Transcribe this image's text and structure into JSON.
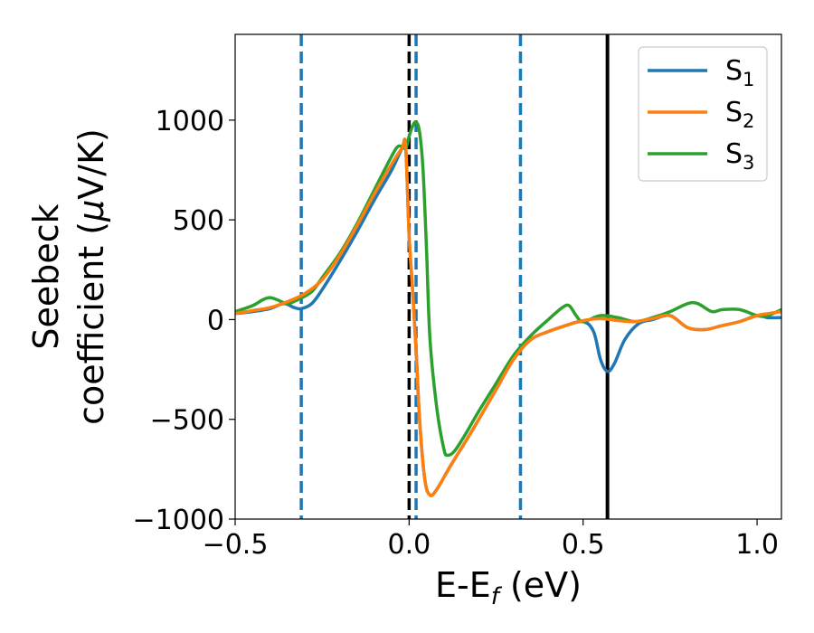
{
  "chart_data": {
    "type": "line",
    "xlabel": "E-E",
    "xlabel_sub": "f",
    "xlabel_unit": " (eV)",
    "ylabel_line1": "Seebeck",
    "ylabel_line2_prefix": "coefficient  (",
    "ylabel_mu": "μ",
    "ylabel_line2_suffix": "V/K)",
    "xlim": [
      -0.5,
      1.07
    ],
    "ylim": [
      -1000,
      1430
    ],
    "xticks": [
      -0.5,
      0.0,
      0.5,
      1.0
    ],
    "xtick_labels": [
      "−0.5",
      "0.0",
      "0.5",
      "1.0"
    ],
    "yticks": [
      -1000,
      -500,
      0,
      500,
      1000
    ],
    "ytick_labels": [
      "−1000",
      "−500",
      "0",
      "500",
      "1000"
    ],
    "grid": false,
    "legend_position": "top-right",
    "series": [
      {
        "name": "S",
        "sub": "1",
        "color": "#1f77b4",
        "points": [
          [
            -0.5,
            30
          ],
          [
            -0.45,
            40
          ],
          [
            -0.4,
            55
          ],
          [
            -0.36,
            80
          ],
          [
            -0.33,
            60
          ],
          [
            -0.31,
            55
          ],
          [
            -0.28,
            80
          ],
          [
            -0.25,
            150
          ],
          [
            -0.2,
            290
          ],
          [
            -0.15,
            440
          ],
          [
            -0.1,
            600
          ],
          [
            -0.05,
            750
          ],
          [
            -0.02,
            860
          ],
          [
            -0.01,
            870
          ],
          [
            0.0,
            420
          ],
          [
            0.01,
            150
          ],
          [
            0.02,
            -150
          ],
          [
            0.03,
            -500
          ],
          [
            0.045,
            -800
          ],
          [
            0.06,
            -880
          ],
          [
            0.08,
            -850
          ],
          [
            0.12,
            -730
          ],
          [
            0.18,
            -560
          ],
          [
            0.25,
            -350
          ],
          [
            0.3,
            -200
          ],
          [
            0.35,
            -100
          ],
          [
            0.4,
            -60
          ],
          [
            0.45,
            -30
          ],
          [
            0.5,
            -10
          ],
          [
            0.53,
            -60
          ],
          [
            0.55,
            -200
          ],
          [
            0.57,
            -260
          ],
          [
            0.59,
            -220
          ],
          [
            0.62,
            -100
          ],
          [
            0.66,
            -20
          ],
          [
            0.7,
            0
          ],
          [
            0.75,
            20
          ],
          [
            0.8,
            -40
          ],
          [
            0.85,
            -50
          ],
          [
            0.9,
            -30
          ],
          [
            0.95,
            -10
          ],
          [
            1.0,
            20
          ],
          [
            1.03,
            10
          ],
          [
            1.07,
            10
          ]
        ]
      },
      {
        "name": "S",
        "sub": "2",
        "color": "#ff7f0e",
        "points": [
          [
            -0.5,
            30
          ],
          [
            -0.45,
            45
          ],
          [
            -0.4,
            60
          ],
          [
            -0.35,
            90
          ],
          [
            -0.3,
            130
          ],
          [
            -0.25,
            200
          ],
          [
            -0.2,
            320
          ],
          [
            -0.15,
            470
          ],
          [
            -0.1,
            630
          ],
          [
            -0.05,
            780
          ],
          [
            -0.02,
            860
          ],
          [
            -0.01,
            870
          ],
          [
            0.0,
            420
          ],
          [
            0.01,
            150
          ],
          [
            0.02,
            -150
          ],
          [
            0.03,
            -500
          ],
          [
            0.045,
            -800
          ],
          [
            0.06,
            -880
          ],
          [
            0.08,
            -850
          ],
          [
            0.12,
            -730
          ],
          [
            0.18,
            -560
          ],
          [
            0.25,
            -350
          ],
          [
            0.3,
            -200
          ],
          [
            0.35,
            -100
          ],
          [
            0.4,
            -60
          ],
          [
            0.45,
            -30
          ],
          [
            0.5,
            -5
          ],
          [
            0.55,
            5
          ],
          [
            0.6,
            -5
          ],
          [
            0.65,
            -10
          ],
          [
            0.7,
            5
          ],
          [
            0.75,
            20
          ],
          [
            0.8,
            -40
          ],
          [
            0.85,
            -50
          ],
          [
            0.9,
            -30
          ],
          [
            0.95,
            -10
          ],
          [
            1.0,
            20
          ],
          [
            1.03,
            30
          ],
          [
            1.07,
            40
          ]
        ]
      },
      {
        "name": "S",
        "sub": "3",
        "color": "#2ca02c",
        "points": [
          [
            -0.5,
            40
          ],
          [
            -0.45,
            70
          ],
          [
            -0.42,
            100
          ],
          [
            -0.4,
            110
          ],
          [
            -0.38,
            100
          ],
          [
            -0.35,
            80
          ],
          [
            -0.32,
            100
          ],
          [
            -0.28,
            140
          ],
          [
            -0.25,
            210
          ],
          [
            -0.2,
            330
          ],
          [
            -0.15,
            480
          ],
          [
            -0.1,
            650
          ],
          [
            -0.05,
            820
          ],
          [
            -0.03,
            870
          ],
          [
            -0.01,
            860
          ],
          [
            0.0,
            920
          ],
          [
            0.01,
            970
          ],
          [
            0.02,
            990
          ],
          [
            0.03,
            940
          ],
          [
            0.04,
            750
          ],
          [
            0.05,
            350
          ],
          [
            0.06,
            -100
          ],
          [
            0.08,
            -450
          ],
          [
            0.1,
            -650
          ],
          [
            0.11,
            -680
          ],
          [
            0.13,
            -660
          ],
          [
            0.16,
            -580
          ],
          [
            0.2,
            -460
          ],
          [
            0.25,
            -320
          ],
          [
            0.3,
            -180
          ],
          [
            0.35,
            -80
          ],
          [
            0.4,
            0
          ],
          [
            0.44,
            60
          ],
          [
            0.46,
            70
          ],
          [
            0.48,
            20
          ],
          [
            0.5,
            -10
          ],
          [
            0.55,
            20
          ],
          [
            0.6,
            10
          ],
          [
            0.65,
            -10
          ],
          [
            0.7,
            10
          ],
          [
            0.75,
            40
          ],
          [
            0.8,
            80
          ],
          [
            0.83,
            80
          ],
          [
            0.87,
            40
          ],
          [
            0.9,
            50
          ],
          [
            0.95,
            50
          ],
          [
            1.0,
            20
          ],
          [
            1.03,
            20
          ],
          [
            1.07,
            50
          ]
        ]
      }
    ],
    "vlines": [
      {
        "x": -0.31,
        "style": "dashed",
        "color": "#1f77b4"
      },
      {
        "x": 0.0,
        "style": "dashed",
        "color": "#000000"
      },
      {
        "x": 0.02,
        "style": "dashed",
        "color": "#1f77b4"
      },
      {
        "x": 0.32,
        "style": "dashed",
        "color": "#1f77b4"
      },
      {
        "x": 0.57,
        "style": "solid",
        "color": "#000000"
      }
    ]
  }
}
